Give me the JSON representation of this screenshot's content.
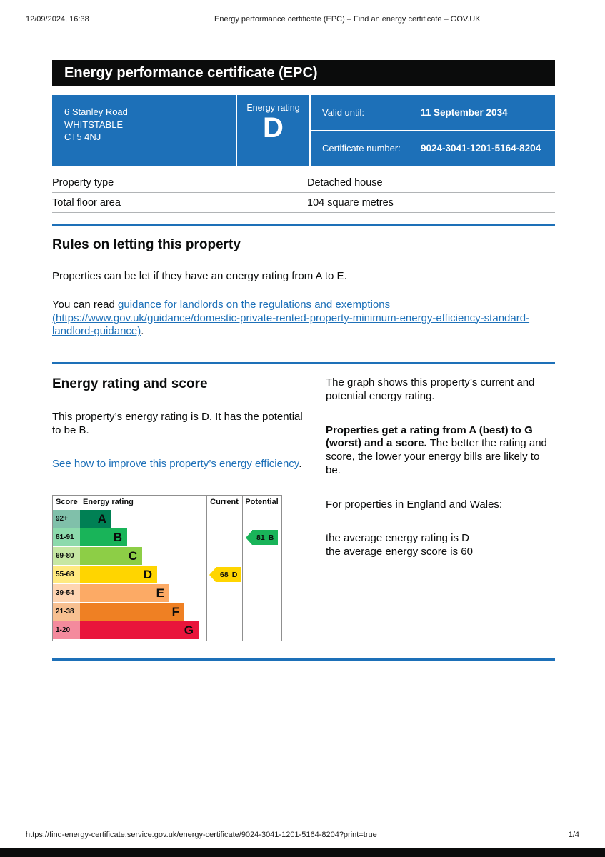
{
  "print_header": {
    "datetime": "12/09/2024, 16:38",
    "title": "Energy performance certificate (EPC) – Find an energy certificate – GOV.UK"
  },
  "print_footer": {
    "url": "https://find-energy-certificate.service.gov.uk/energy-certificate/9024-3041-1201-5164-8204?print=true",
    "page_number": "1/4"
  },
  "banner": {
    "title": "Energy performance certificate (EPC)"
  },
  "summary_box": {
    "address_lines": [
      "6 Stanley Road",
      "WHITSTABLE",
      "CT5 4NJ"
    ],
    "energy_rating_label": "Energy rating",
    "energy_rating": "D",
    "valid_until_label": "Valid until:",
    "valid_until_value": "11 September 2034",
    "certificate_number_label": "Certificate number:",
    "certificate_number_value": "9024-3041-1201-5164-8204",
    "background_color": "#1d70b8"
  },
  "property_details": {
    "rows": [
      {
        "label": "Property type",
        "value": "Detached house"
      },
      {
        "label": "Total floor area",
        "value": "104 square metres"
      }
    ]
  },
  "rules_section": {
    "heading": "Rules on letting this property",
    "para1": "Properties can be let if they have an energy rating from A to E.",
    "para2_prefix": "You can read ",
    "guidance_link_text": "guidance for landlords on the regulations and exemptions",
    "guidance_link_url": "(https://www.gov.uk/guidance/domestic-private-rented-property-minimum-energy-efficiency-standard-landlord-guidance)",
    "para2_suffix": "."
  },
  "rating_section": {
    "heading": "Energy rating and score",
    "para1": "This property’s energy rating is D. It has the potential to be B.",
    "improve_link_text": "See how to improve this property’s energy efficiency",
    "improve_link_suffix": ".",
    "right_para1": "The graph shows this property’s current and potential energy rating.",
    "right_para2_bold": "Properties get a rating from A (best) to G (worst) and a score.",
    "right_para2_rest": " The better the rating and score, the lower your energy bills are likely to be.",
    "right_para3": "For properties in England and Wales:",
    "average_rating_line": "the average energy rating is D",
    "average_score_line": "the average energy score is 60"
  },
  "chart_data": {
    "type": "bar",
    "orientation": "horizontal",
    "columns": [
      "Score",
      "Energy rating",
      "Current",
      "Potential"
    ],
    "bands": [
      {
        "score_range": "92+",
        "letter": "A",
        "color": "#008054",
        "tint": "#80c0aa"
      },
      {
        "score_range": "81-91",
        "letter": "B",
        "color": "#19b459",
        "tint": "#8cdaac"
      },
      {
        "score_range": "69-80",
        "letter": "C",
        "color": "#8dce46",
        "tint": "#c6e7a3"
      },
      {
        "score_range": "55-68",
        "letter": "D",
        "color": "#ffd500",
        "tint": "#ffea80"
      },
      {
        "score_range": "39-54",
        "letter": "E",
        "color": "#fcaa65",
        "tint": "#fed5b2"
      },
      {
        "score_range": "21-38",
        "letter": "F",
        "color": "#ef8023",
        "tint": "#f7c091"
      },
      {
        "score_range": "1-20",
        "letter": "G",
        "color": "#e9153b",
        "tint": "#f48a9d"
      }
    ],
    "current": {
      "label": "Current",
      "score": 68,
      "letter": "D",
      "band_index": 3,
      "color": "#ffd500"
    },
    "potential": {
      "label": "Potential",
      "score": 81,
      "letter": "B",
      "band_index": 1,
      "color": "#19b459"
    }
  },
  "colors": {
    "govuk_blue": "#1d70b8",
    "text_black": "#0b0c0c",
    "table_border": "#b1b4b6"
  }
}
